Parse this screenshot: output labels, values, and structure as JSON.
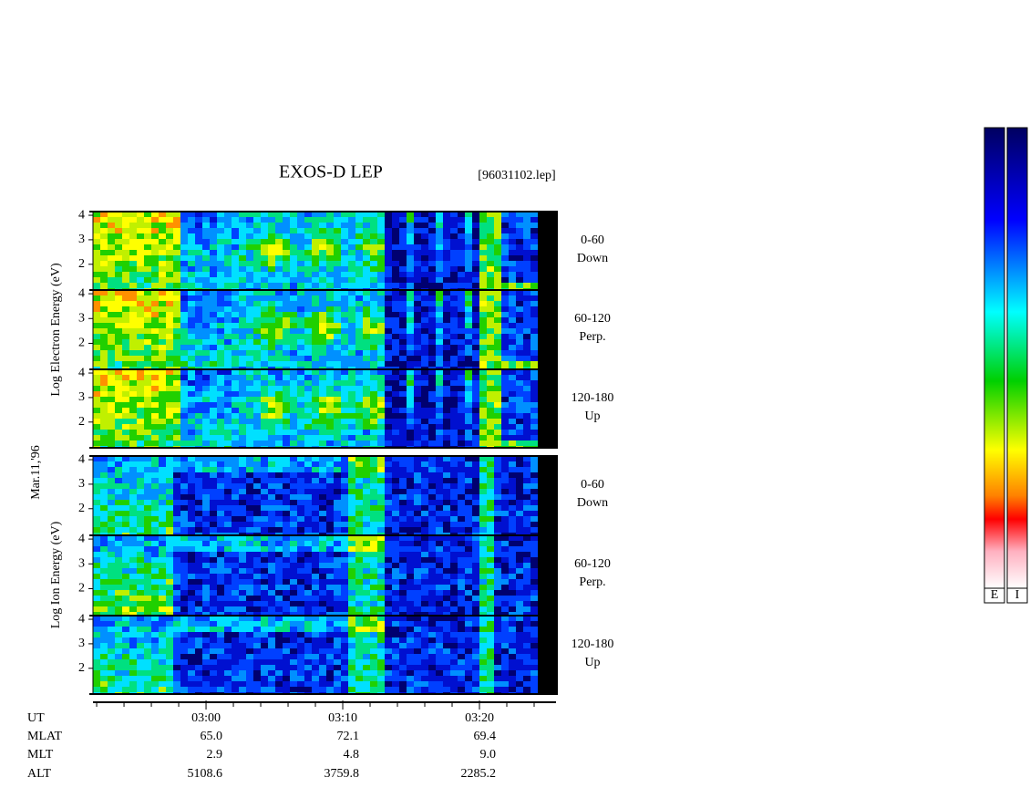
{
  "header": {
    "title": "EXOS-D LEP",
    "file": "[96031102.lep]"
  },
  "date": "Mar.11,'96",
  "groups": [
    {
      "axis_label": "Log Electron Energy (eV)",
      "panels": [
        {
          "angle": "0-60",
          "direction": "Down"
        },
        {
          "angle": "60-120",
          "direction": "Perp."
        },
        {
          "angle": "120-180",
          "direction": "Up"
        }
      ]
    },
    {
      "axis_label": "Log Ion Energy (eV)",
      "panels": [
        {
          "angle": "0-60",
          "direction": "Down"
        },
        {
          "angle": "60-120",
          "direction": "Perp."
        },
        {
          "angle": "120-180",
          "direction": "Up"
        }
      ]
    }
  ],
  "ylim": [
    0.95,
    4.15
  ],
  "yticks": [
    4,
    3,
    2
  ],
  "xlim": [
    -8.27,
    25.6
  ],
  "xticks": [
    {
      "value": 0,
      "label": "03:00"
    },
    {
      "value": 10,
      "label": "03:10"
    },
    {
      "value": 20,
      "label": "03:20"
    }
  ],
  "minor_xticks": [
    -8,
    -6,
    -4,
    -2,
    2,
    4,
    6,
    8,
    12,
    14,
    16,
    18,
    22,
    24
  ],
  "ephemeris": {
    "row_labels": [
      "UT",
      "MLAT",
      "MLT",
      "ALT"
    ],
    "columns": [
      [
        "65.0",
        "2.9",
        "5108.6"
      ],
      [
        "72.1",
        "4.8",
        "3759.8"
      ],
      [
        "69.4",
        "9.0",
        "2285.2"
      ]
    ]
  },
  "colorbar_labels": [
    "E",
    "I"
  ]
}
